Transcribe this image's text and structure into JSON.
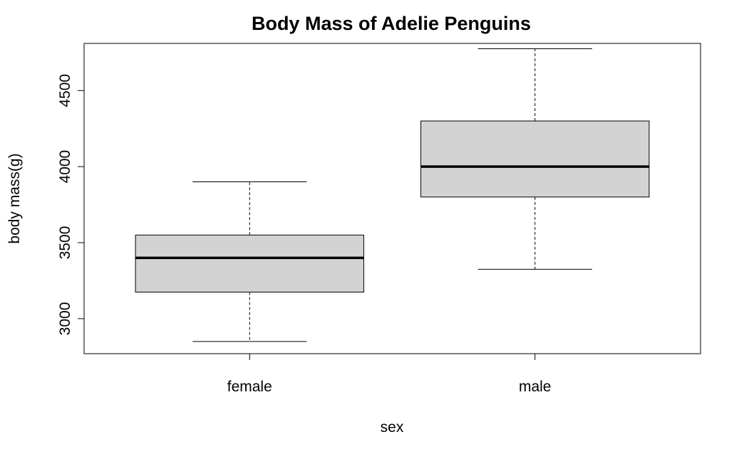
{
  "chart_data": {
    "type": "boxplot",
    "title": "Body Mass of Adelie Penguins",
    "xlabel": "sex",
    "ylabel": "body mass(g)",
    "categories": [
      "female",
      "male"
    ],
    "boxes": [
      {
        "category": "female",
        "whisker_low": 2850,
        "q1": 3175,
        "median": 3400,
        "q3": 3550,
        "whisker_high": 3900
      },
      {
        "category": "male",
        "whisker_low": 3325,
        "q1": 3800,
        "median": 4000,
        "q3": 4300,
        "whisker_high": 4775
      }
    ],
    "y_ticks": [
      3000,
      3500,
      4000,
      4500
    ],
    "y_tick_labels": [
      "3000",
      "3500",
      "4000",
      "4500"
    ],
    "ylim": [
      2770,
      4810
    ],
    "grid": false,
    "colors": {
      "box_fill": "#d3d3d3",
      "stroke": "#000000"
    }
  }
}
